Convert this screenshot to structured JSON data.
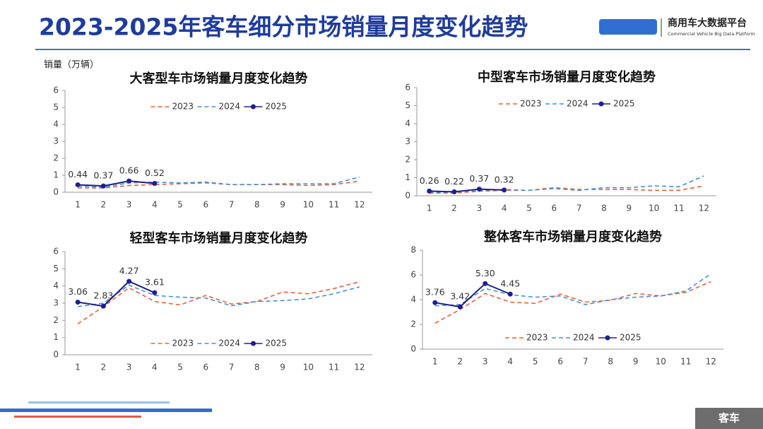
{
  "header": {
    "title": "2023-2025年客车细分市场销量月度变化趋势",
    "logo_name": "商用车大数据平台",
    "logo_subtitle": "Commercial Vehicle Big Data Platform",
    "unit_label": "销量（万辆）",
    "tag": "客车"
  },
  "chart_data": [
    {
      "type": "line",
      "title": "大客型车市场销量月度变化趋势",
      "legend": "top",
      "categories": [
        "1",
        "2",
        "3",
        "4",
        "5",
        "6",
        "7",
        "8",
        "9",
        "10",
        "11",
        "12"
      ],
      "ylim": [
        0,
        6
      ],
      "yticks": [
        0,
        1,
        2,
        3,
        4,
        5,
        6
      ],
      "series": [
        {
          "name": "2023",
          "color": "#e8603c",
          "line_style": "dashed",
          "values": [
            0.25,
            0.25,
            0.4,
            0.45,
            0.5,
            0.55,
            0.45,
            0.45,
            0.45,
            0.4,
            0.45,
            0.65
          ]
        },
        {
          "name": "2024",
          "color": "#4a8fd8",
          "line_style": "dashed",
          "values": [
            0.35,
            0.3,
            0.55,
            0.6,
            0.55,
            0.6,
            0.45,
            0.45,
            0.5,
            0.5,
            0.5,
            0.9
          ]
        },
        {
          "name": "2025",
          "color": "#1f1f8f",
          "line_style": "solid",
          "markers": true,
          "data_labels": true,
          "values": [
            0.44,
            0.37,
            0.66,
            0.52,
            null,
            null,
            null,
            null,
            null,
            null,
            null,
            null
          ]
        }
      ]
    },
    {
      "type": "line",
      "title": "中型客车市场销量月度变化趋势",
      "legend": "top",
      "categories": [
        "1",
        "2",
        "3",
        "4",
        "5",
        "6",
        "7",
        "8",
        "9",
        "10",
        "11",
        "12"
      ],
      "ylim": [
        0,
        6
      ],
      "yticks": [
        0,
        1,
        2,
        3,
        4,
        5,
        6
      ],
      "series": [
        {
          "name": "2023",
          "color": "#e8603c",
          "line_style": "dashed",
          "values": [
            0.15,
            0.15,
            0.25,
            0.3,
            0.3,
            0.45,
            0.35,
            0.35,
            0.35,
            0.3,
            0.3,
            0.55
          ]
        },
        {
          "name": "2024",
          "color": "#4a8fd8",
          "line_style": "dashed",
          "values": [
            0.2,
            0.2,
            0.3,
            0.35,
            0.3,
            0.4,
            0.3,
            0.45,
            0.45,
            0.55,
            0.5,
            1.1
          ]
        },
        {
          "name": "2025",
          "color": "#1f1f8f",
          "line_style": "solid",
          "markers": true,
          "data_labels": true,
          "values": [
            0.26,
            0.22,
            0.37,
            0.32,
            null,
            null,
            null,
            null,
            null,
            null,
            null,
            null
          ]
        }
      ]
    },
    {
      "type": "line",
      "title": "轻型客车市场销量月度变化趋势",
      "legend": "bottom",
      "categories": [
        "1",
        "2",
        "3",
        "4",
        "5",
        "6",
        "7",
        "8",
        "9",
        "10",
        "11",
        "12"
      ],
      "ylim": [
        0,
        6
      ],
      "yticks": [
        0,
        1,
        2,
        3,
        4,
        5,
        6
      ],
      "series": [
        {
          "name": "2023",
          "color": "#e8603c",
          "line_style": "dashed",
          "values": [
            1.8,
            2.8,
            3.9,
            3.1,
            2.9,
            3.45,
            2.95,
            3.1,
            3.65,
            3.55,
            3.85,
            4.25
          ]
        },
        {
          "name": "2024",
          "color": "#4a8fd8",
          "line_style": "dashed",
          "values": [
            2.8,
            3.0,
            4.05,
            3.45,
            3.35,
            3.3,
            2.85,
            3.1,
            3.15,
            3.25,
            3.55,
            3.95
          ]
        },
        {
          "name": "2025",
          "color": "#1f1f8f",
          "line_style": "solid",
          "markers": true,
          "data_labels": true,
          "values": [
            3.06,
            2.83,
            4.27,
            3.61,
            null,
            null,
            null,
            null,
            null,
            null,
            null,
            null
          ]
        }
      ]
    },
    {
      "type": "line",
      "title": "整体客车市场销量月度变化趋势",
      "legend": "bottom",
      "categories": [
        "1",
        "2",
        "3",
        "4",
        "5",
        "6",
        "7",
        "8",
        "9",
        "10",
        "11",
        "12"
      ],
      "ylim": [
        0,
        8
      ],
      "yticks": [
        0,
        2,
        4,
        6,
        8
      ],
      "series": [
        {
          "name": "2023",
          "color": "#e8603c",
          "line_style": "dashed",
          "values": [
            2.1,
            3.2,
            4.5,
            3.8,
            3.7,
            4.45,
            3.8,
            3.95,
            4.5,
            4.3,
            4.6,
            5.45
          ]
        },
        {
          "name": "2024",
          "color": "#4a8fd8",
          "line_style": "dashed",
          "values": [
            3.5,
            3.6,
            4.9,
            4.4,
            4.2,
            4.3,
            3.6,
            4.0,
            4.2,
            4.3,
            4.7,
            6.1
          ]
        },
        {
          "name": "2025",
          "color": "#1f1f8f",
          "line_style": "solid",
          "markers": true,
          "data_labels": true,
          "values": [
            3.76,
            3.42,
            5.3,
            4.45,
            null,
            null,
            null,
            null,
            null,
            null,
            null,
            null
          ],
          "value_labels": [
            "3.76",
            "3.42",
            "5.30",
            "4.45",
            null,
            null,
            null,
            null,
            null,
            null,
            null,
            null
          ]
        }
      ]
    }
  ]
}
